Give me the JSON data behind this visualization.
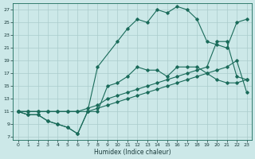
{
  "bg_color": "#cce8e8",
  "grid_color": "#b0d8d8",
  "line_color": "#1a6b5a",
  "xlabel": "Humidex (Indice chaleur)",
  "xlim": [
    -0.5,
    23.5
  ],
  "ylim": [
    6.5,
    28.0
  ],
  "xticks": [
    0,
    1,
    2,
    3,
    4,
    5,
    6,
    7,
    8,
    9,
    10,
    11,
    12,
    13,
    14,
    15,
    16,
    17,
    18,
    19,
    20,
    21,
    22,
    23
  ],
  "yticks": [
    7,
    9,
    11,
    13,
    15,
    17,
    19,
    21,
    23,
    25,
    27
  ],
  "lines": [
    {
      "x": [
        0,
        1,
        2,
        3,
        4,
        5,
        6,
        7,
        8,
        10,
        11,
        12,
        13,
        14,
        15,
        16,
        17,
        18,
        19,
        20,
        21,
        22,
        23
      ],
      "y": [
        11,
        10.5,
        10.5,
        9.5,
        9,
        8.5,
        7.5,
        11,
        18,
        22,
        24,
        25.5,
        25,
        27,
        26.5,
        27.5,
        27,
        25.5,
        22,
        21.5,
        21,
        25,
        25.5
      ]
    },
    {
      "x": [
        0,
        1,
        2,
        3,
        4,
        5,
        6,
        7,
        8,
        9,
        10,
        11,
        12,
        13,
        14,
        15,
        16,
        17,
        18,
        19,
        20,
        21,
        22,
        23
      ],
      "y": [
        11,
        10.5,
        10.5,
        9.5,
        9,
        8.5,
        7.5,
        11,
        11,
        15,
        15.5,
        16.5,
        18,
        17.5,
        17.5,
        16.5,
        18,
        18,
        18,
        17,
        16,
        15.5,
        15.5,
        16
      ]
    },
    {
      "x": [
        0,
        1,
        2,
        3,
        4,
        5,
        6,
        7,
        8,
        9,
        10,
        11,
        12,
        13,
        14,
        15,
        16,
        17,
        18,
        19,
        20,
        21,
        22,
        23
      ],
      "y": [
        11,
        11,
        11,
        11,
        11,
        11,
        11,
        11.5,
        12,
        13,
        13.5,
        14,
        14.5,
        15,
        15.5,
        16,
        16.5,
        17,
        17.5,
        18,
        22,
        22,
        16.5,
        16
      ]
    },
    {
      "x": [
        0,
        1,
        2,
        3,
        4,
        5,
        6,
        7,
        8,
        9,
        10,
        11,
        12,
        13,
        14,
        15,
        16,
        17,
        18,
        19,
        20,
        21,
        22,
        23
      ],
      "y": [
        11,
        11,
        11,
        11,
        11,
        11,
        11,
        11,
        11.5,
        12,
        12.5,
        13,
        13.5,
        14,
        14.5,
        15,
        15.5,
        16,
        16.5,
        17,
        17.5,
        18,
        19,
        14
      ]
    }
  ],
  "marker": "D",
  "markersize": 1.8,
  "linewidth": 0.8,
  "tick_fontsize": 4.5,
  "xlabel_fontsize": 5.5
}
